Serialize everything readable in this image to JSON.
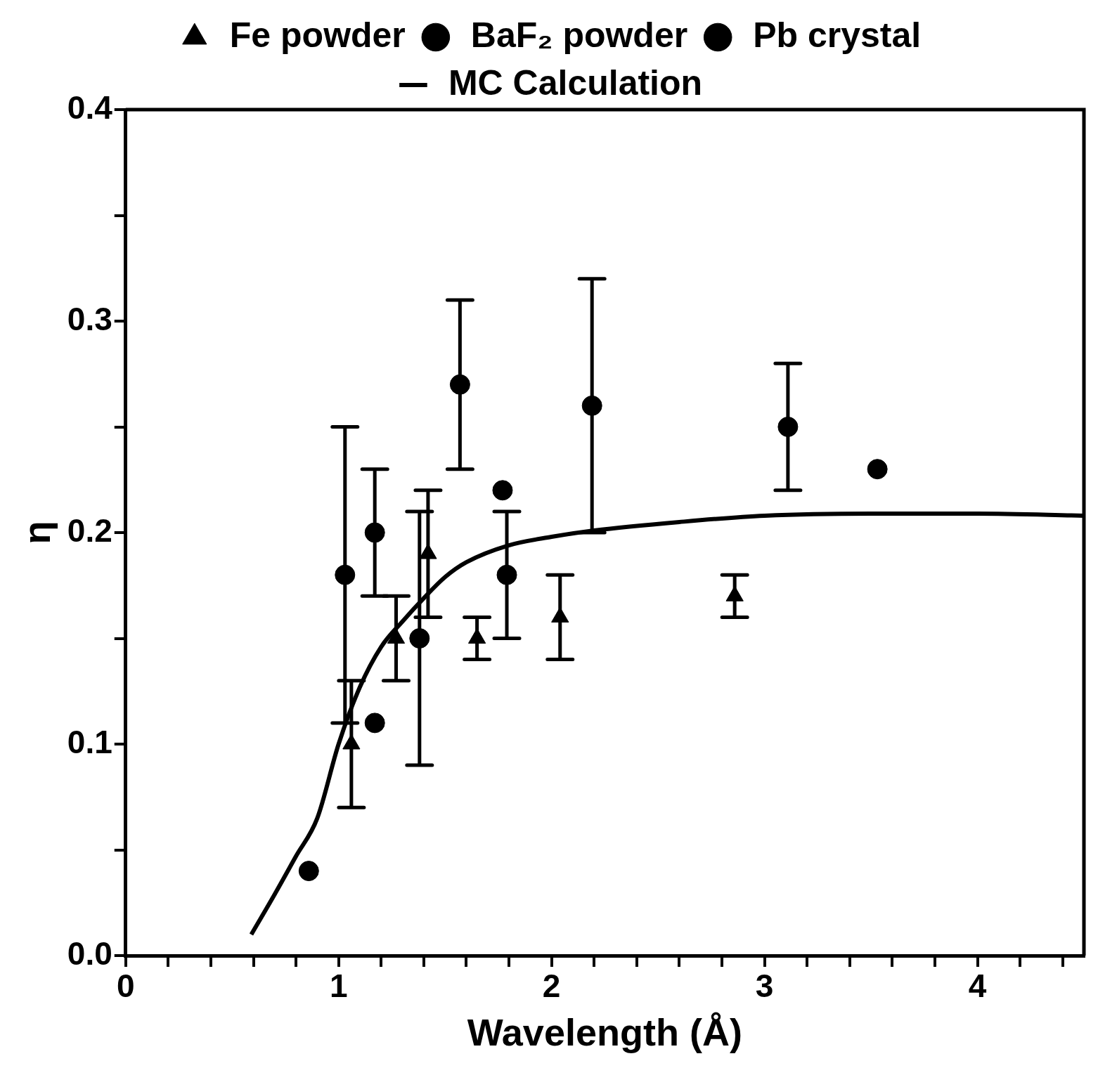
{
  "chart_data": {
    "type": "scatter",
    "xlabel": "Wavelength (Å)",
    "ylabel": "η",
    "xlim": [
      0,
      4.5
    ],
    "ylim": [
      0,
      0.4
    ],
    "xticks": [
      0,
      {
        "value": 0.2,
        "label": null
      },
      {
        "value": 0.4,
        "label": null
      },
      {
        "value": 0.6,
        "label": null
      },
      {
        "value": 0.8,
        "label": null
      },
      1,
      {
        "value": 1.2,
        "label": null
      },
      {
        "value": 1.4,
        "label": null
      },
      {
        "value": 1.6,
        "label": null
      },
      {
        "value": 1.8,
        "label": null
      },
      2,
      {
        "value": 2.2,
        "label": null
      },
      {
        "value": 2.4,
        "label": null
      },
      {
        "value": 2.6,
        "label": null
      },
      {
        "value": 2.8,
        "label": null
      },
      3,
      {
        "value": 3.2,
        "label": null
      },
      {
        "value": 3.4,
        "label": null
      },
      {
        "value": 3.6,
        "label": null
      },
      {
        "value": 3.8,
        "label": null
      },
      4,
      {
        "value": 4.2,
        "label": null
      },
      {
        "value": 4.4,
        "label": null
      }
    ],
    "yticks": [
      {
        "value": 0,
        "label": "0.0"
      },
      {
        "value": 0.05,
        "label": null
      },
      0.1,
      {
        "value": 0.15,
        "label": null
      },
      0.2,
      {
        "value": 0.25,
        "label": null
      },
      0.3,
      {
        "value": 0.35,
        "label": null
      },
      0.4
    ],
    "grid": false,
    "legend": "top",
    "series": [
      {
        "name": "Fe powder",
        "marker": "triangle",
        "color": "#000000",
        "x": [
          1.06,
          1.27,
          1.42,
          1.65,
          2.04,
          2.86
        ],
        "values": [
          0.1,
          0.15,
          0.19,
          0.15,
          0.16,
          0.17
        ],
        "errors": [
          0.03,
          0.02,
          0.03,
          0.01,
          0.02,
          0.01
        ]
      },
      {
        "name": "BaF₂ powder",
        "marker": "circle",
        "color": "#000000"
      },
      {
        "name": "Pb crystal",
        "marker": "circle",
        "color": "#000000",
        "x": [
          0.86,
          1.03,
          1.17,
          1.17,
          1.38,
          1.57,
          1.77,
          1.79,
          2.19,
          3.11,
          3.53
        ],
        "values": [
          0.04,
          0.18,
          0.2,
          0.11,
          0.15,
          0.27,
          0.22,
          0.18,
          0.26,
          0.25,
          0.23
        ],
        "errors": [
          null,
          0.07,
          0.03,
          null,
          0.06,
          0.04,
          null,
          0.03,
          0.06,
          0.03,
          null
        ]
      },
      {
        "name": "MC Calculation",
        "type": "line",
        "line_style": "solid",
        "color": "#000000",
        "x": [
          0.59,
          0.7,
          0.8,
          0.9,
          1.0,
          1.1,
          1.2,
          1.3,
          1.4,
          1.5,
          1.6,
          1.8,
          2.0,
          2.2,
          2.6,
          3.0,
          3.5,
          4.0,
          4.5
        ],
        "values": [
          0.01,
          0.029,
          0.047,
          0.065,
          0.1,
          0.127,
          0.146,
          0.158,
          0.169,
          0.179,
          0.186,
          0.194,
          0.198,
          0.201,
          0.205,
          0.208,
          0.209,
          0.209,
          0.208
        ]
      }
    ]
  }
}
